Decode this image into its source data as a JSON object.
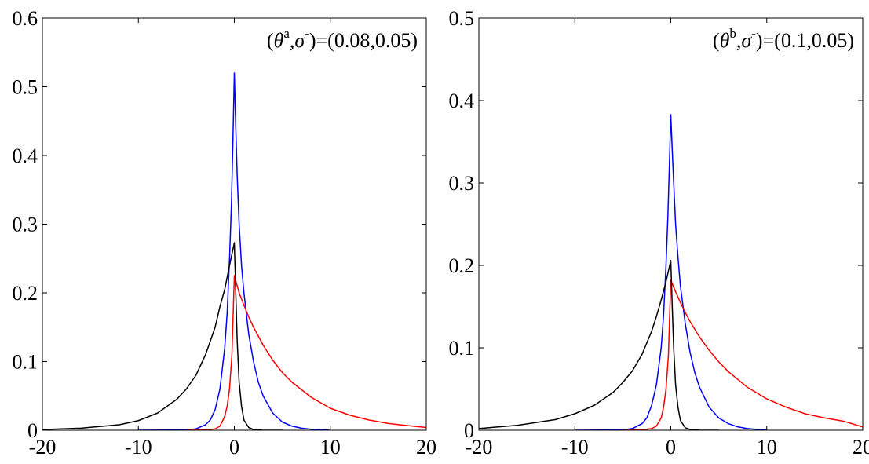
{
  "chart_data": [
    {
      "type": "line",
      "title": "",
      "xlabel": "",
      "ylabel": "",
      "xlim": [
        -20,
        20
      ],
      "ylim": [
        0,
        0.6
      ],
      "xticks": [
        -20,
        -10,
        0,
        10,
        20
      ],
      "yticks": [
        0,
        0.1,
        0.2,
        0.3,
        0.4,
        0.5,
        0.6
      ],
      "xtick_labels": [
        "-20",
        "-10",
        "0",
        "10",
        "20"
      ],
      "ytick_labels": [
        "0",
        "0.1",
        "0.2",
        "0.3",
        "0.4",
        "0.5",
        "0.6"
      ],
      "grid": false,
      "annotation": {
        "prefix": "(",
        "theta": "θ",
        "theta_sup": "a",
        "sep": ",",
        "sigma": "σ",
        "sigma_sup": "-",
        "suffix": ")=(0.08,0.05)"
      },
      "series": [
        {
          "color": "#0000ff",
          "x": [
            -10,
            -5,
            -4,
            -3,
            -2.5,
            -2,
            -1.5,
            -1,
            -0.75,
            -0.5,
            -0.3,
            -0.15,
            0,
            0.15,
            0.3,
            0.5,
            0.75,
            1,
            1.5,
            2,
            2.5,
            3,
            4,
            5,
            6,
            7,
            8,
            10
          ],
          "y": [
            0,
            0.0005,
            0.002,
            0.008,
            0.015,
            0.03,
            0.06,
            0.12,
            0.17,
            0.25,
            0.33,
            0.42,
            0.52,
            0.44,
            0.37,
            0.3,
            0.24,
            0.2,
            0.14,
            0.1,
            0.07,
            0.05,
            0.025,
            0.012,
            0.006,
            0.003,
            0.0015,
            0
          ]
        },
        {
          "color": "#ff0000",
          "x": [
            -5,
            -3,
            -2,
            -1.5,
            -1,
            -0.75,
            -0.5,
            -0.25,
            0,
            0.5,
            1,
            1.5,
            2,
            3,
            4,
            5,
            6,
            8,
            10,
            12,
            14,
            16,
            18,
            20
          ],
          "y": [
            0,
            0.0005,
            0.002,
            0.006,
            0.02,
            0.035,
            0.06,
            0.11,
            0.225,
            0.2,
            0.182,
            0.165,
            0.15,
            0.124,
            0.102,
            0.084,
            0.07,
            0.048,
            0.032,
            0.022,
            0.015,
            0.01,
            0.0068,
            0.004
          ]
        },
        {
          "color": "#000000",
          "x": [
            -20,
            -16,
            -12,
            -10,
            -8,
            -6,
            -5,
            -4,
            -3,
            -2,
            -1.5,
            -1,
            -0.5,
            0,
            0.15,
            0.3,
            0.5,
            0.75,
            1,
            1.5,
            2,
            3,
            5
          ],
          "y": [
            0.001,
            0.003,
            0.008,
            0.014,
            0.025,
            0.045,
            0.06,
            0.08,
            0.11,
            0.15,
            0.18,
            0.205,
            0.24,
            0.273,
            0.2,
            0.13,
            0.07,
            0.035,
            0.015,
            0.004,
            0.001,
            0,
            0
          ]
        }
      ]
    },
    {
      "type": "line",
      "title": "",
      "xlabel": "",
      "ylabel": "",
      "xlim": [
        -20,
        20
      ],
      "ylim": [
        0,
        0.5
      ],
      "xticks": [
        -20,
        -10,
        0,
        10,
        20
      ],
      "yticks": [
        0,
        0.1,
        0.2,
        0.3,
        0.4,
        0.5
      ],
      "xtick_labels": [
        "-20",
        "-10",
        "0",
        "10",
        "20"
      ],
      "ytick_labels": [
        "0",
        "0.1",
        "0.2",
        "0.3",
        "0.4",
        "0.5"
      ],
      "grid": false,
      "annotation": {
        "prefix": "(",
        "theta": "θ",
        "theta_sup": "b",
        "sep": ",",
        "sigma": "σ",
        "sigma_sup": "-",
        "suffix": ")=(0.1,0.05)"
      },
      "series": [
        {
          "color": "#0000ff",
          "x": [
            -10,
            -5,
            -4,
            -3,
            -2.5,
            -2,
            -1.5,
            -1,
            -0.75,
            -0.5,
            -0.3,
            -0.15,
            0,
            0.15,
            0.3,
            0.5,
            0.75,
            1,
            1.5,
            2,
            2.5,
            3,
            4,
            5,
            6,
            7,
            8,
            10
          ],
          "y": [
            0,
            0.0005,
            0.002,
            0.008,
            0.015,
            0.03,
            0.055,
            0.1,
            0.14,
            0.2,
            0.26,
            0.32,
            0.383,
            0.34,
            0.3,
            0.25,
            0.21,
            0.175,
            0.13,
            0.095,
            0.07,
            0.052,
            0.028,
            0.015,
            0.008,
            0.004,
            0.002,
            0
          ]
        },
        {
          "color": "#ff0000",
          "x": [
            -5,
            -3,
            -2,
            -1.5,
            -1,
            -0.75,
            -0.5,
            -0.25,
            0,
            0.5,
            1,
            1.5,
            2,
            3,
            4,
            5,
            6,
            8,
            10,
            12,
            14,
            16,
            18,
            20
          ],
          "y": [
            0,
            0.0005,
            0.002,
            0.005,
            0.015,
            0.028,
            0.05,
            0.09,
            0.182,
            0.168,
            0.155,
            0.143,
            0.132,
            0.113,
            0.097,
            0.083,
            0.071,
            0.052,
            0.038,
            0.028,
            0.02,
            0.015,
            0.011,
            0.004
          ]
        },
        {
          "color": "#000000",
          "x": [
            -20,
            -16,
            -12,
            -10,
            -8,
            -6,
            -5,
            -4,
            -3,
            -2,
            -1.5,
            -1,
            -0.5,
            0,
            0.15,
            0.3,
            0.5,
            0.75,
            1,
            1.5,
            2,
            3,
            5
          ],
          "y": [
            0.002,
            0.006,
            0.013,
            0.02,
            0.03,
            0.046,
            0.058,
            0.072,
            0.092,
            0.12,
            0.138,
            0.158,
            0.18,
            0.206,
            0.15,
            0.1,
            0.055,
            0.028,
            0.012,
            0.003,
            0.001,
            0,
            0
          ]
        }
      ]
    }
  ]
}
